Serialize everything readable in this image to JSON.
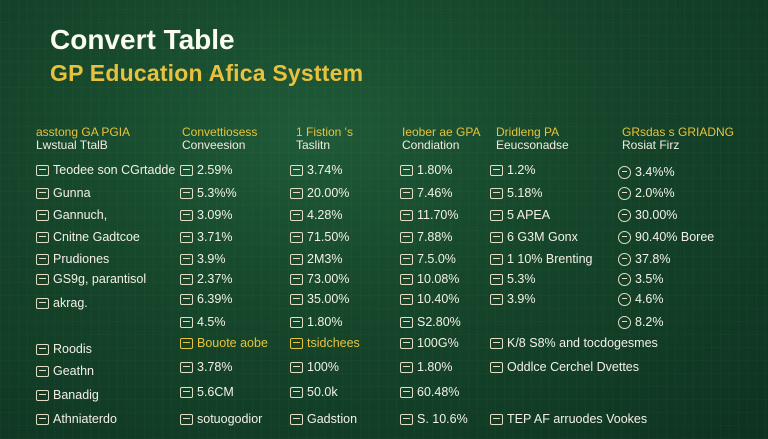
{
  "title": "Convert Table",
  "subtitle": "GP Education Afica Systtem",
  "columns": [
    {
      "header": [
        "asstong GA PGIA",
        "Lwstual TtalB"
      ],
      "cells": [
        "Teodee son CGrtadde",
        "Gunna",
        "Gannuch,",
        "Cnitne Gadtcoe",
        "Prudiones",
        "GS9g, parantisol",
        "akrag.",
        "Roodis",
        "Geathn",
        "Banadig",
        "Athniaterdo"
      ]
    },
    {
      "header": [
        "Convettiosess",
        "Conveesion"
      ],
      "cells": [
        "2.59%",
        "5.3%%",
        "3.09%",
        "3.71%",
        "3.9%",
        "2.37%",
        "6.39%",
        "4.5%",
        "Bouote aobe",
        "3.78%",
        "5.6CM",
        "sotuogodior"
      ]
    },
    {
      "header": [
        "1 Fistion 's",
        "Taslitn"
      ],
      "cells": [
        "3.74%",
        "20.00%",
        "4.28%",
        "71.50%",
        "2M3%",
        "73.00%",
        "35.00%",
        "1.80%",
        "tsidchees",
        "100%",
        "50.0k",
        "Gadstion"
      ]
    },
    {
      "header": [
        "Ieober ae GPA",
        "Condiation"
      ],
      "cells": [
        "1.80%",
        "7.46%",
        "11.70%",
        "7.88%",
        "7.5.0%",
        "10.08%",
        "10.40%",
        "S2.80%",
        "100G%",
        "1.80%",
        "60.48%",
        "S. 10.6%"
      ]
    },
    {
      "header": [
        "Dridleng PA",
        "Eeucsonadse"
      ],
      "cells": [
        "1.2%",
        "5.18%",
        "5 APEA",
        "6 G3M Gonx",
        "1 10% Brenting",
        "5.3%",
        "3.9%",
        "K/8 S8% and tocdogesmes",
        "Oddlce Cerchel Dvettes",
        "",
        "TEP AF arruodes Vookes"
      ]
    },
    {
      "header": [
        "GRsdas s GRIADNG",
        "Rosiat Firz"
      ],
      "cells": [
        "3.4%%",
        "2.0%%",
        "30.00%",
        "90.40% Boree",
        "37.8%",
        "3.5%",
        "4.6%",
        "8.2%"
      ]
    }
  ]
}
